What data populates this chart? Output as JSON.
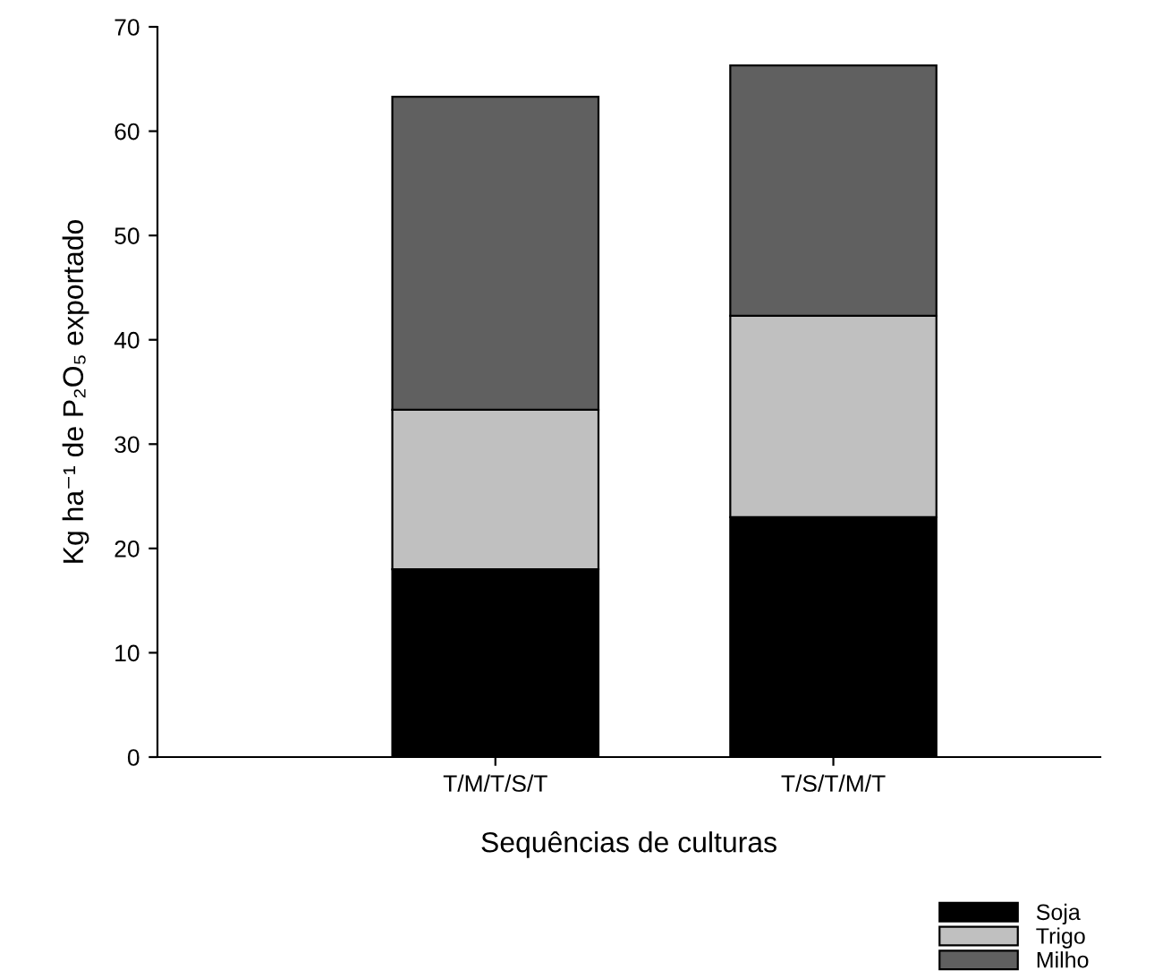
{
  "chart_data": {
    "type": "bar",
    "stacked": true,
    "xlabel": "Sequências de culturas",
    "ylabel": "Kg ha⁻¹ de P₂O₅ exportado",
    "categories": [
      "T/M/T/S/T",
      "T/S/T/M/T"
    ],
    "series": [
      {
        "name": "Soja",
        "color": "#000000",
        "values": [
          18,
          23
        ]
      },
      {
        "name": "Trigo",
        "color": "#c0c0c0",
        "values": [
          15.3,
          19.3
        ]
      },
      {
        "name": "Milho",
        "color": "#606060",
        "values": [
          30,
          24
        ]
      }
    ],
    "ylim": [
      0,
      70
    ],
    "yticks": [
      0,
      10,
      20,
      30,
      40,
      50,
      60,
      70
    ],
    "grid": false,
    "legend": "bottom right"
  }
}
